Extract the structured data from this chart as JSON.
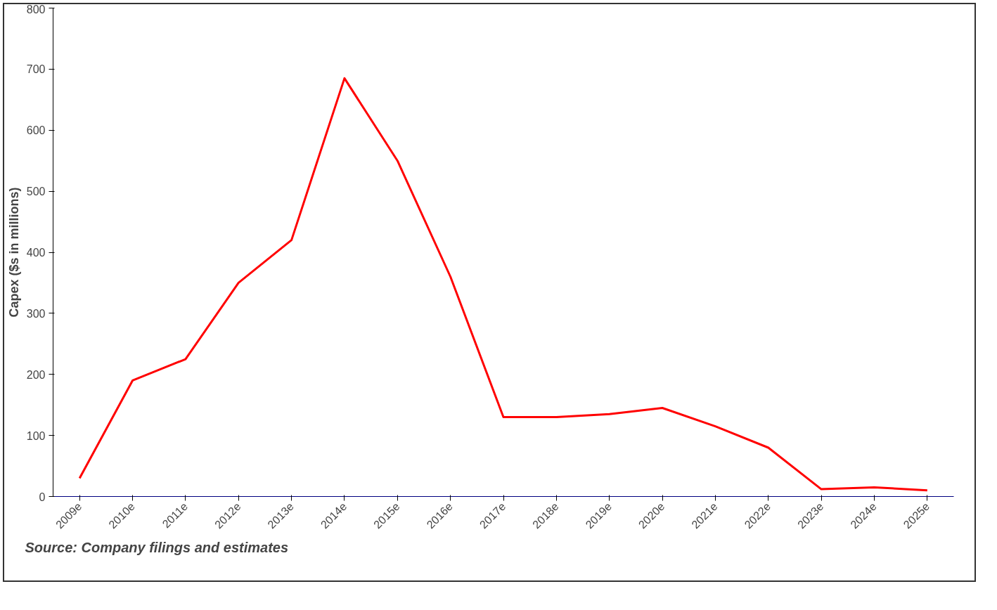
{
  "chart_data": {
    "type": "line",
    "ylabel": "Capex ($s in millions)",
    "categories": [
      "2009e",
      "2010e",
      "2011e",
      "2012e",
      "2013e",
      "2014e",
      "2015e",
      "2016e",
      "2017e",
      "2018e",
      "2019e",
      "2020e",
      "2021e",
      "2022e",
      "2023e",
      "2024e",
      "2025e"
    ],
    "series": [
      {
        "color": "#ff0000",
        "values": [
          30,
          190,
          225,
          350,
          420,
          685,
          550,
          360,
          130,
          130,
          135,
          145,
          115,
          80,
          12,
          15,
          10
        ]
      }
    ],
    "ylim": [
      0,
      800
    ],
    "yticks": [
      0,
      100,
      200,
      300,
      400,
      500,
      600,
      700,
      800
    ],
    "grid": false,
    "marker": "none",
    "line_style": "solid",
    "annotations": [
      "Source: Company filings and estimates"
    ]
  }
}
